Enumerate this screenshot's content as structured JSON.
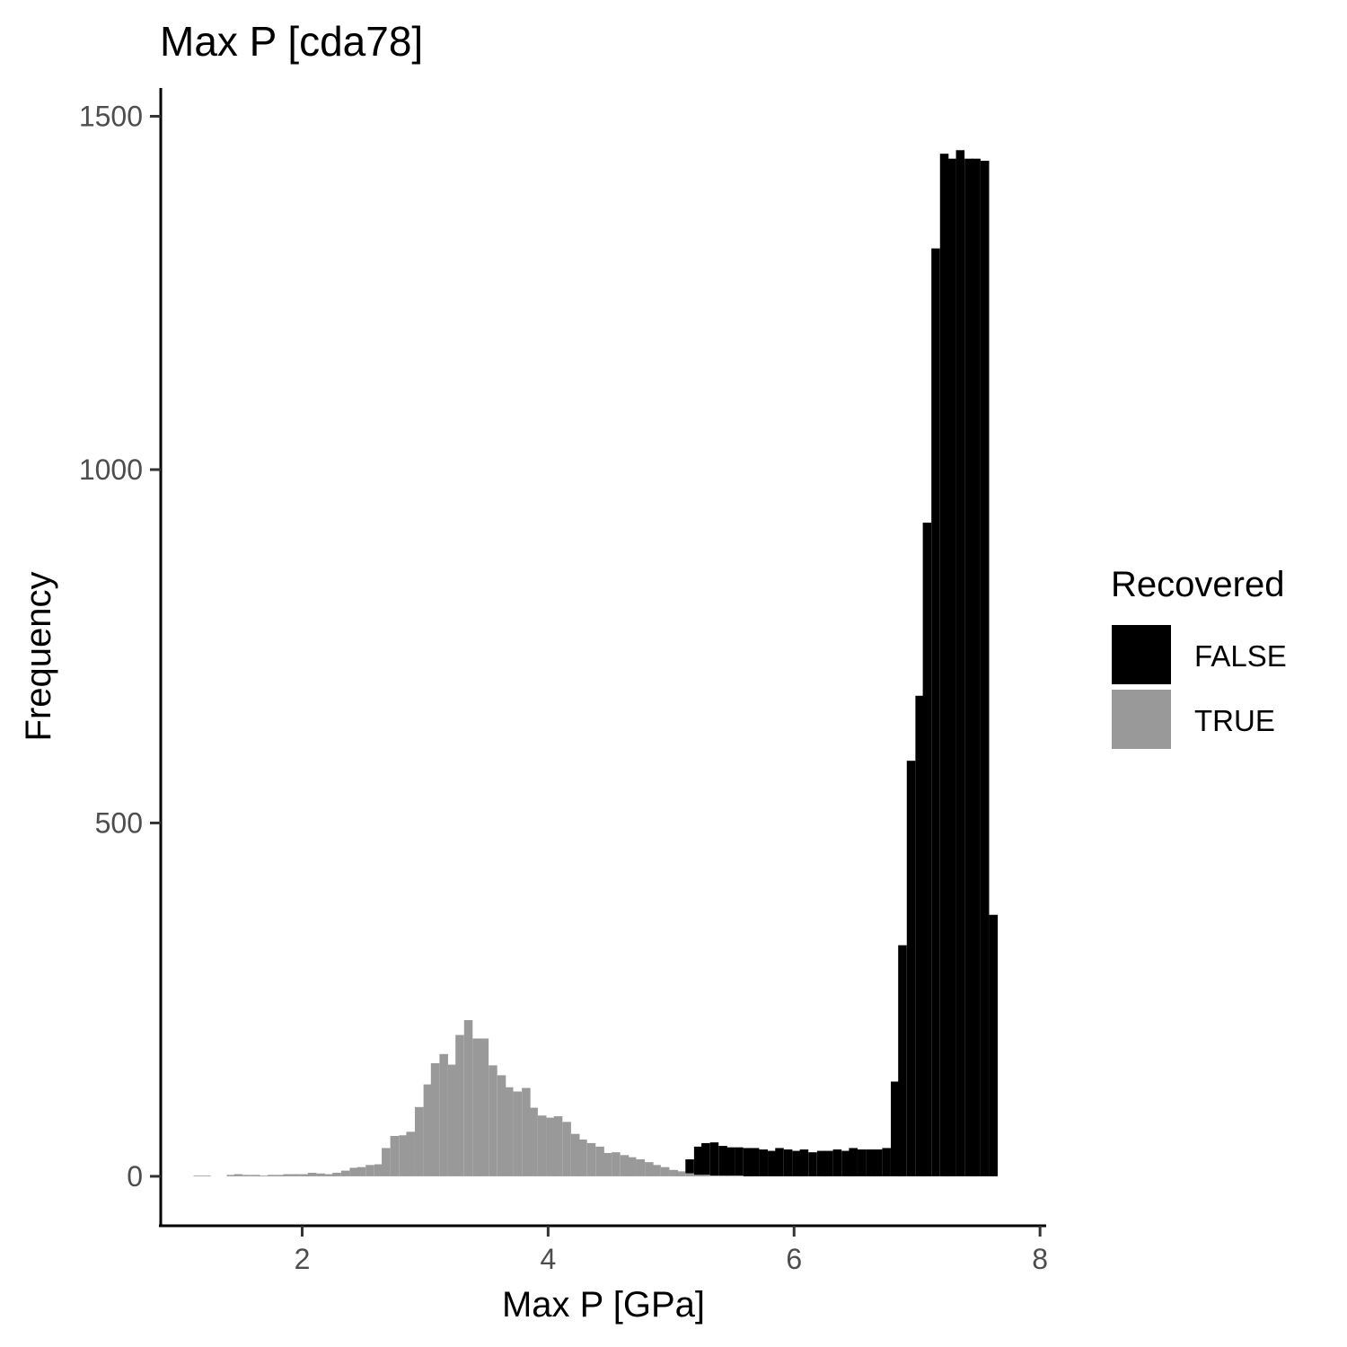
{
  "chart_data": {
    "type": "bar",
    "title": "Max P [cda78]",
    "xlabel": "Max P [GPa]",
    "ylabel": "Frequency",
    "xlim": [
      0.85,
      8.05
    ],
    "ylim": [
      -70,
      1540
    ],
    "xticks": [
      2,
      4,
      6,
      8
    ],
    "yticks": [
      0,
      500,
      1000,
      1500
    ],
    "bin_width": 0.0667,
    "bins_x": [
      1.15,
      1.22,
      1.28,
      1.35,
      1.42,
      1.48,
      1.55,
      1.62,
      1.68,
      1.75,
      1.82,
      1.88,
      1.95,
      2.02,
      2.08,
      2.15,
      2.22,
      2.28,
      2.35,
      2.42,
      2.48,
      2.55,
      2.62,
      2.68,
      2.75,
      2.82,
      2.88,
      2.95,
      3.02,
      3.08,
      3.15,
      3.22,
      3.28,
      3.35,
      3.42,
      3.48,
      3.55,
      3.62,
      3.68,
      3.75,
      3.82,
      3.88,
      3.95,
      4.02,
      4.08,
      4.15,
      4.22,
      4.28,
      4.35,
      4.42,
      4.48,
      4.55,
      4.62,
      4.68,
      4.75,
      4.82,
      4.88,
      4.95,
      5.02,
      5.08,
      5.15,
      5.22,
      5.28,
      5.35,
      5.42,
      5.48,
      5.55,
      5.62,
      5.68,
      5.75,
      5.82,
      5.88,
      5.95,
      6.02,
      6.08,
      6.15,
      6.22,
      6.28,
      6.35,
      6.42,
      6.48,
      6.55,
      6.62,
      6.68,
      6.75,
      6.82,
      6.88,
      6.95,
      7.02,
      7.08,
      7.15,
      7.22,
      7.28,
      7.35,
      7.42,
      7.48,
      7.55,
      7.62
    ],
    "legend": {
      "title": "Recovered",
      "position": "right"
    },
    "series": [
      {
        "name": "FALSE",
        "color": "#000000",
        "values": [
          0,
          0,
          0,
          0,
          0,
          0,
          0,
          0,
          0,
          0,
          0,
          0,
          0,
          0,
          0,
          0,
          0,
          0,
          0,
          0,
          0,
          0,
          0,
          0,
          0,
          0,
          0,
          0,
          0,
          0,
          0,
          0,
          0,
          0,
          0,
          0,
          0,
          0,
          0,
          0,
          0,
          0,
          0,
          0,
          0,
          0,
          0,
          0,
          0,
          0,
          0,
          0,
          0,
          0,
          0,
          0,
          0,
          0,
          0,
          0,
          20,
          40,
          45,
          47,
          42,
          40,
          40,
          40,
          40,
          38,
          36,
          40,
          38,
          36,
          38,
          34,
          36,
          36,
          38,
          36,
          40,
          38,
          38,
          38,
          40,
          134,
          327,
          588,
          680,
          925,
          1313,
          1447,
          1440,
          1452,
          1440,
          1440,
          1437,
          370
        ],
        "note_values": "FALSE portion stacked above TRUE"
      },
      {
        "name": "TRUE",
        "color": "#999999",
        "values": [
          1,
          1,
          0,
          0,
          2,
          3,
          2,
          2,
          1,
          2,
          2,
          3,
          3,
          3,
          5,
          4,
          3,
          5,
          8,
          12,
          13,
          16,
          17,
          40,
          57,
          58,
          63,
          98,
          130,
          160,
          173,
          158,
          200,
          221,
          195,
          195,
          157,
          143,
          126,
          120,
          125,
          97,
          86,
          83,
          85,
          77,
          60,
          52,
          47,
          42,
          33,
          34,
          30,
          27,
          24,
          20,
          16,
          13,
          9,
          7,
          4,
          2,
          2,
          1,
          1,
          1,
          1,
          0,
          0,
          0,
          0,
          0,
          0,
          0,
          0,
          0,
          0,
          0,
          0,
          0,
          0,
          0,
          0,
          0,
          0,
          0,
          0,
          0,
          0,
          0,
          0,
          0,
          0,
          0,
          0,
          0,
          0,
          0
        ]
      }
    ]
  }
}
